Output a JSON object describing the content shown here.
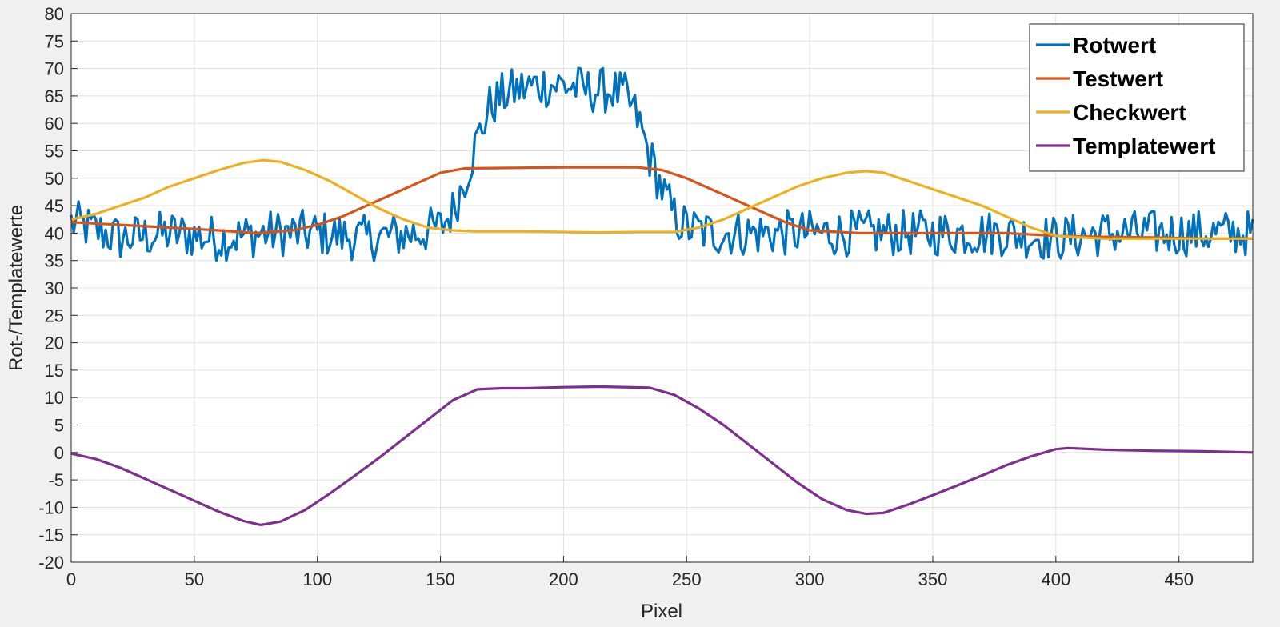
{
  "chart_data": {
    "type": "line",
    "title": "",
    "xlabel": "Pixel",
    "ylabel": "Rot-/Templatewerte",
    "xlim": [
      0,
      480
    ],
    "ylim": [
      -20,
      80
    ],
    "x_ticks": [
      0,
      50,
      100,
      150,
      200,
      250,
      300,
      350,
      400,
      450
    ],
    "y_ticks": [
      -20,
      -15,
      -10,
      -5,
      0,
      5,
      10,
      15,
      20,
      25,
      30,
      35,
      40,
      45,
      50,
      55,
      60,
      65,
      70,
      75,
      80
    ],
    "grid": true,
    "legend_position": "top-right",
    "series": [
      {
        "name": "Rotwert",
        "color": "#0072BD",
        "noisy": true,
        "points": [
          [
            0,
            42
          ],
          [
            20,
            39
          ],
          [
            40,
            40
          ],
          [
            60,
            39
          ],
          [
            80,
            40
          ],
          [
            100,
            40
          ],
          [
            120,
            39
          ],
          [
            140,
            40
          ],
          [
            150,
            41
          ],
          [
            155,
            44
          ],
          [
            160,
            50
          ],
          [
            165,
            57
          ],
          [
            170,
            63
          ],
          [
            175,
            65
          ],
          [
            180,
            66
          ],
          [
            190,
            67
          ],
          [
            200,
            67
          ],
          [
            210,
            66
          ],
          [
            220,
            66
          ],
          [
            225,
            65
          ],
          [
            230,
            61
          ],
          [
            235,
            54
          ],
          [
            240,
            48
          ],
          [
            245,
            43
          ],
          [
            250,
            41
          ],
          [
            260,
            40
          ],
          [
            280,
            40
          ],
          [
            300,
            40
          ],
          [
            320,
            40
          ],
          [
            340,
            40
          ],
          [
            360,
            40
          ],
          [
            380,
            40
          ],
          [
            400,
            39
          ],
          [
            420,
            40
          ],
          [
            440,
            40
          ],
          [
            460,
            40
          ],
          [
            480,
            40
          ]
        ]
      },
      {
        "name": "Testwert",
        "color": "#D95319",
        "noisy": false,
        "points": [
          [
            0,
            42
          ],
          [
            20,
            41.5
          ],
          [
            40,
            41
          ],
          [
            60,
            40.5
          ],
          [
            75,
            40
          ],
          [
            90,
            40.5
          ],
          [
            100,
            41.5
          ],
          [
            110,
            43
          ],
          [
            120,
            45
          ],
          [
            130,
            47
          ],
          [
            140,
            49
          ],
          [
            150,
            51
          ],
          [
            160,
            51.8
          ],
          [
            180,
            51.9
          ],
          [
            200,
            52
          ],
          [
            220,
            52
          ],
          [
            230,
            52
          ],
          [
            240,
            51.5
          ],
          [
            250,
            50
          ],
          [
            260,
            48
          ],
          [
            270,
            46
          ],
          [
            280,
            44
          ],
          [
            290,
            42
          ],
          [
            300,
            40.5
          ],
          [
            320,
            40
          ],
          [
            350,
            40
          ],
          [
            380,
            40
          ],
          [
            400,
            39.5
          ],
          [
            420,
            39.3
          ],
          [
            440,
            39.2
          ],
          [
            460,
            39
          ],
          [
            480,
            39
          ]
        ]
      },
      {
        "name": "Checkwert",
        "color": "#EDB120",
        "noisy": false,
        "points": [
          [
            0,
            42.5
          ],
          [
            10,
            43.5
          ],
          [
            20,
            45
          ],
          [
            30,
            46.5
          ],
          [
            40,
            48.5
          ],
          [
            50,
            50
          ],
          [
            60,
            51.5
          ],
          [
            70,
            52.8
          ],
          [
            78,
            53.3
          ],
          [
            85,
            53
          ],
          [
            95,
            51.5
          ],
          [
            105,
            49.5
          ],
          [
            115,
            47
          ],
          [
            125,
            44.5
          ],
          [
            135,
            42.5
          ],
          [
            145,
            41
          ],
          [
            155,
            40.5
          ],
          [
            165,
            40.3
          ],
          [
            175,
            40.3
          ],
          [
            185,
            40.3
          ],
          [
            200,
            40.2
          ],
          [
            215,
            40.1
          ],
          [
            230,
            40.2
          ],
          [
            245,
            40.2
          ],
          [
            255,
            41
          ],
          [
            265,
            42.5
          ],
          [
            275,
            44.5
          ],
          [
            285,
            46.5
          ],
          [
            295,
            48.5
          ],
          [
            305,
            50
          ],
          [
            315,
            51
          ],
          [
            323,
            51.3
          ],
          [
            330,
            51
          ],
          [
            340,
            49.5
          ],
          [
            350,
            48
          ],
          [
            360,
            46.5
          ],
          [
            370,
            45
          ],
          [
            380,
            43
          ],
          [
            390,
            41
          ],
          [
            400,
            39.5
          ],
          [
            410,
            39.2
          ],
          [
            420,
            39
          ],
          [
            440,
            39
          ],
          [
            460,
            39
          ],
          [
            480,
            39
          ]
        ]
      },
      {
        "name": "Templatewert",
        "color": "#7E2F8E",
        "noisy": false,
        "points": [
          [
            0,
            -0.2
          ],
          [
            10,
            -1.2
          ],
          [
            20,
            -2.8
          ],
          [
            30,
            -4.8
          ],
          [
            40,
            -6.8
          ],
          [
            50,
            -8.8
          ],
          [
            60,
            -10.8
          ],
          [
            70,
            -12.5
          ],
          [
            77,
            -13.2
          ],
          [
            85,
            -12.6
          ],
          [
            95,
            -10.5
          ],
          [
            105,
            -7.5
          ],
          [
            115,
            -4.3
          ],
          [
            125,
            -1
          ],
          [
            135,
            2.5
          ],
          [
            145,
            6
          ],
          [
            155,
            9.5
          ],
          [
            165,
            11.5
          ],
          [
            175,
            11.7
          ],
          [
            185,
            11.7
          ],
          [
            200,
            11.9
          ],
          [
            215,
            12
          ],
          [
            235,
            11.8
          ],
          [
            245,
            10.5
          ],
          [
            255,
            8
          ],
          [
            265,
            5
          ],
          [
            275,
            1.5
          ],
          [
            285,
            -2
          ],
          [
            295,
            -5.5
          ],
          [
            305,
            -8.5
          ],
          [
            315,
            -10.5
          ],
          [
            323,
            -11.2
          ],
          [
            330,
            -11
          ],
          [
            340,
            -9.5
          ],
          [
            350,
            -7.8
          ],
          [
            360,
            -6
          ],
          [
            370,
            -4.2
          ],
          [
            380,
            -2.3
          ],
          [
            390,
            -0.7
          ],
          [
            400,
            0.6
          ],
          [
            405,
            0.8
          ],
          [
            420,
            0.5
          ],
          [
            440,
            0.3
          ],
          [
            460,
            0.2
          ],
          [
            480,
            0
          ]
        ]
      }
    ]
  }
}
